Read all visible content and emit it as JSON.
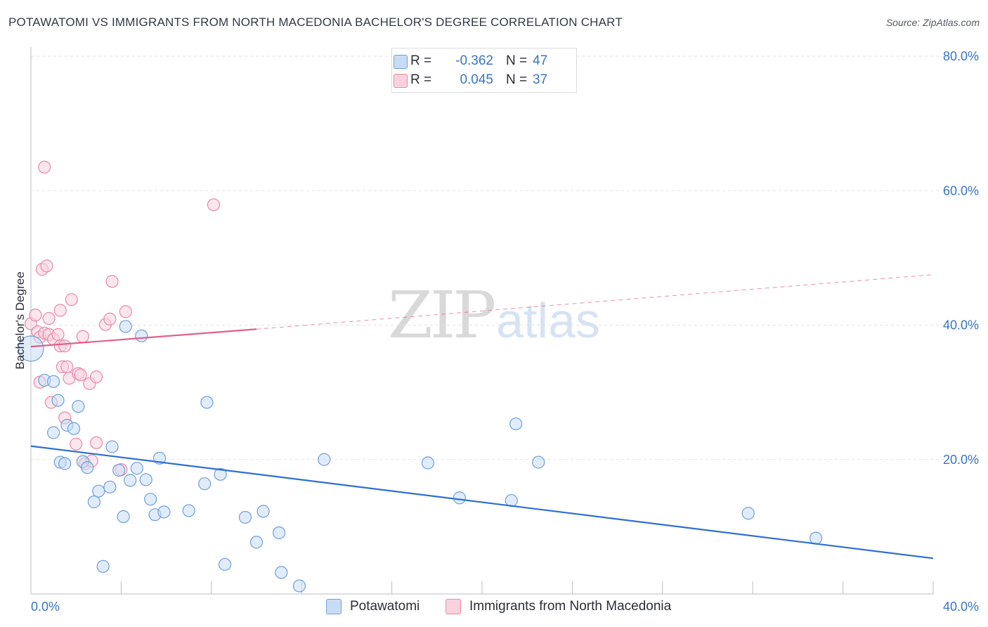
{
  "header": {
    "title": "POTAWATOMI VS IMMIGRANTS FROM NORTH MACEDONIA BACHELOR'S DEGREE CORRELATION CHART",
    "source": "Source: ZipAtlas.com"
  },
  "watermark": {
    "zip": "ZIP",
    "atlas": "atlas"
  },
  "legend": {
    "rows": [
      {
        "r_label": "R =",
        "r_value": "-0.362",
        "n_label": "N =",
        "n_value": "47",
        "color": "#a8c6ee",
        "border": "#6f9fd8"
      },
      {
        "r_label": "R =",
        "r_value": "0.045",
        "n_label": "N =",
        "n_value": "37",
        "color": "#f7bccd",
        "border": "#e88aa6"
      }
    ]
  },
  "bottom_legend": {
    "items": [
      {
        "label": "Potawatomi",
        "color": "#a8c6ee",
        "border": "#6f9fd8"
      },
      {
        "label": "Immigrants from North Macedonia",
        "color": "#f7bccd",
        "border": "#e88aa6"
      }
    ]
  },
  "chart_data": {
    "type": "scatter",
    "title": "POTAWATOMI VS IMMIGRANTS FROM NORTH MACEDONIA BACHELOR'S DEGREE CORRELATION CHART",
    "xlabel": "",
    "ylabel": "Bachelor's Degree",
    "xlim": [
      0,
      40
    ],
    "ylim": [
      0,
      80
    ],
    "x_tick_labels": [
      "0.0%",
      "40.0%"
    ],
    "y_ticks": [
      20,
      40,
      60,
      80
    ],
    "y_tick_labels": [
      "20.0%",
      "40.0%",
      "60.0%",
      "80.0%"
    ],
    "grid": true,
    "series": [
      {
        "name": "Potawatomi",
        "color": "#6f9fd8",
        "fill": "#c9dcf5",
        "trend": {
          "x": [
            0,
            40
          ],
          "y": [
            22.0,
            5.3
          ],
          "color": "#2d6fd2",
          "dashed_from": null
        },
        "points": [
          [
            0.0,
            36.5
          ],
          [
            0.6,
            31.8
          ],
          [
            1.0,
            24.0
          ],
          [
            1.0,
            31.6
          ],
          [
            1.2,
            28.8
          ],
          [
            1.3,
            19.6
          ],
          [
            1.5,
            19.4
          ],
          [
            1.6,
            25.1
          ],
          [
            1.9,
            24.6
          ],
          [
            2.1,
            27.9
          ],
          [
            2.3,
            19.7
          ],
          [
            2.5,
            18.8
          ],
          [
            2.8,
            13.7
          ],
          [
            3.0,
            15.3
          ],
          [
            3.2,
            4.1
          ],
          [
            3.5,
            15.9
          ],
          [
            3.6,
            21.9
          ],
          [
            3.9,
            18.4
          ],
          [
            4.1,
            11.5
          ],
          [
            4.2,
            39.8
          ],
          [
            4.4,
            16.9
          ],
          [
            4.7,
            18.7
          ],
          [
            4.9,
            38.4
          ],
          [
            5.1,
            17.0
          ],
          [
            5.3,
            14.1
          ],
          [
            5.5,
            11.8
          ],
          [
            5.7,
            20.2
          ],
          [
            5.9,
            12.2
          ],
          [
            7.0,
            12.4
          ],
          [
            7.7,
            16.4
          ],
          [
            7.8,
            28.5
          ],
          [
            8.4,
            17.8
          ],
          [
            8.6,
            4.4
          ],
          [
            9.5,
            11.4
          ],
          [
            10.0,
            7.7
          ],
          [
            10.3,
            12.3
          ],
          [
            11.0,
            9.1
          ],
          [
            11.1,
            3.2
          ],
          [
            11.9,
            1.2
          ],
          [
            13.0,
            20.0
          ],
          [
            17.6,
            19.5
          ],
          [
            19.0,
            14.3
          ],
          [
            21.3,
            13.9
          ],
          [
            21.5,
            25.3
          ],
          [
            22.5,
            19.6
          ],
          [
            31.8,
            12.0
          ],
          [
            34.8,
            8.3
          ]
        ]
      },
      {
        "name": "Immigrants from North Macedonia",
        "color": "#e88aa6",
        "fill": "#f9d2de",
        "trend": {
          "x": [
            0,
            10
          ],
          "y": [
            36.8,
            39.4
          ],
          "color": "#e0608a",
          "dashed_to": 40,
          "dashed_to_y": 47.5
        },
        "points": [
          [
            0.0,
            40.2
          ],
          [
            0.2,
            41.5
          ],
          [
            0.3,
            39.0
          ],
          [
            0.4,
            38.2
          ],
          [
            0.4,
            31.5
          ],
          [
            0.5,
            48.3
          ],
          [
            0.6,
            63.5
          ],
          [
            0.6,
            38.8
          ],
          [
            0.7,
            48.8
          ],
          [
            0.8,
            41.0
          ],
          [
            0.8,
            38.6
          ],
          [
            0.9,
            28.5
          ],
          [
            1.0,
            37.9
          ],
          [
            1.2,
            38.6
          ],
          [
            1.3,
            36.9
          ],
          [
            1.3,
            42.2
          ],
          [
            1.4,
            33.8
          ],
          [
            1.5,
            36.9
          ],
          [
            1.5,
            26.2
          ],
          [
            1.6,
            33.8
          ],
          [
            1.7,
            32.1
          ],
          [
            1.8,
            43.8
          ],
          [
            2.0,
            22.3
          ],
          [
            2.1,
            32.8
          ],
          [
            2.2,
            32.6
          ],
          [
            2.3,
            38.3
          ],
          [
            2.4,
            19.4
          ],
          [
            2.6,
            31.3
          ],
          [
            2.7,
            19.8
          ],
          [
            2.9,
            32.3
          ],
          [
            2.9,
            22.5
          ],
          [
            3.3,
            40.1
          ],
          [
            3.5,
            40.9
          ],
          [
            3.6,
            46.5
          ],
          [
            4.0,
            18.5
          ],
          [
            4.2,
            42.0
          ],
          [
            8.1,
            57.9
          ]
        ]
      }
    ]
  }
}
